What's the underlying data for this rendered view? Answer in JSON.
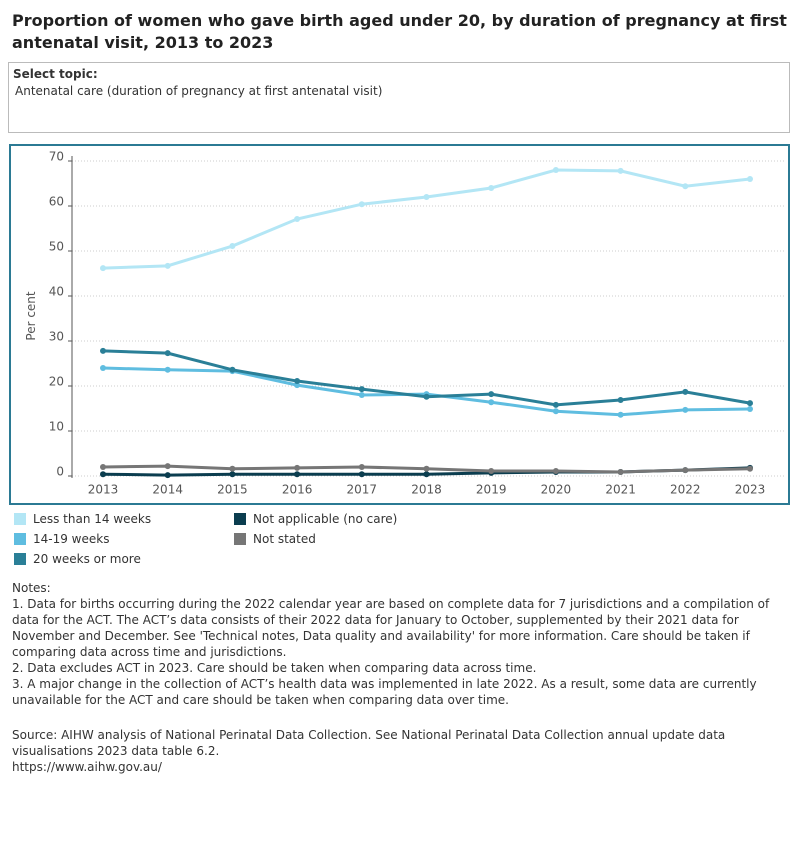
{
  "header": {
    "title": "Proportion of women who gave birth aged under 20, by duration of pregnancy at first antenatal visit, 2013 to 2023"
  },
  "filter": {
    "label": "Select topic:",
    "value": "Antenatal care (duration of pregnancy at first antenatal visit)"
  },
  "chart_data": {
    "type": "line",
    "y_label": "Per cent",
    "categories": [
      "2013",
      "2014",
      "2015",
      "2016",
      "2017",
      "2018",
      "2019",
      "2020",
      "2021",
      "2022",
      "2023"
    ],
    "ylim": [
      0,
      70
    ],
    "yticks": [
      0,
      10,
      20,
      30,
      40,
      50,
      60,
      70
    ],
    "grid": true,
    "series": [
      {
        "name": "Less than 14 weeks",
        "color": "#b3e6f5",
        "values": [
          46.2,
          46.7,
          51.1,
          57.1,
          60.4,
          62,
          64,
          68,
          67.8,
          64.4,
          66
        ]
      },
      {
        "name": "14-19 weeks",
        "color": "#5fbde0",
        "values": [
          24,
          23.6,
          23.3,
          20.2,
          18,
          18.2,
          16.4,
          14.4,
          13.6,
          14.7,
          14.9
        ]
      },
      {
        "name": "20 weeks or more",
        "color": "#2a7f97",
        "values": [
          27.8,
          27.3,
          23.6,
          21.1,
          19.3,
          17.6,
          18.2,
          15.8,
          16.9,
          18.7,
          16.2
        ]
      },
      {
        "name": "Not applicable (no care)",
        "color": "#0b3d4f",
        "values": [
          0.4,
          0.2,
          0.4,
          0.4,
          0.4,
          0.4,
          0.7,
          0.9,
          0.9,
          1.3,
          1.8
        ]
      },
      {
        "name": "Not stated",
        "color": "#767676",
        "values": [
          2,
          2.2,
          1.6,
          1.8,
          2,
          1.6,
          1.1,
          1.1,
          0.9,
          1.3,
          1.6
        ]
      }
    ]
  },
  "notes": {
    "heading": "Notes:",
    "items": [
      "1. Data for births occurring during the 2022 calendar year are based on complete data for 7 jurisdictions and a compilation of data for the ACT. The ACT’s data consists of their 2022 data for January to October, supplemented by their 2021 data for November and December. See 'Technical notes, Data quality and availability' for more information. Care should be taken if comparing data across time and jurisdictions.",
      "2. Data excludes ACT in 2023. Care should be taken when comparing data across time.",
      "3. A major change in the collection of ACT’s health data was implemented in late 2022. As a result, some data are currently unavailable for the ACT and care should be taken when comparing data over time."
    ]
  },
  "source": {
    "text": "Source: AIHW analysis of National Perinatal Data Collection. See National Perinatal Data Collection annual update data visualisations 2023 data table 6.2.",
    "url": "https://www.aihw.gov.au/"
  }
}
